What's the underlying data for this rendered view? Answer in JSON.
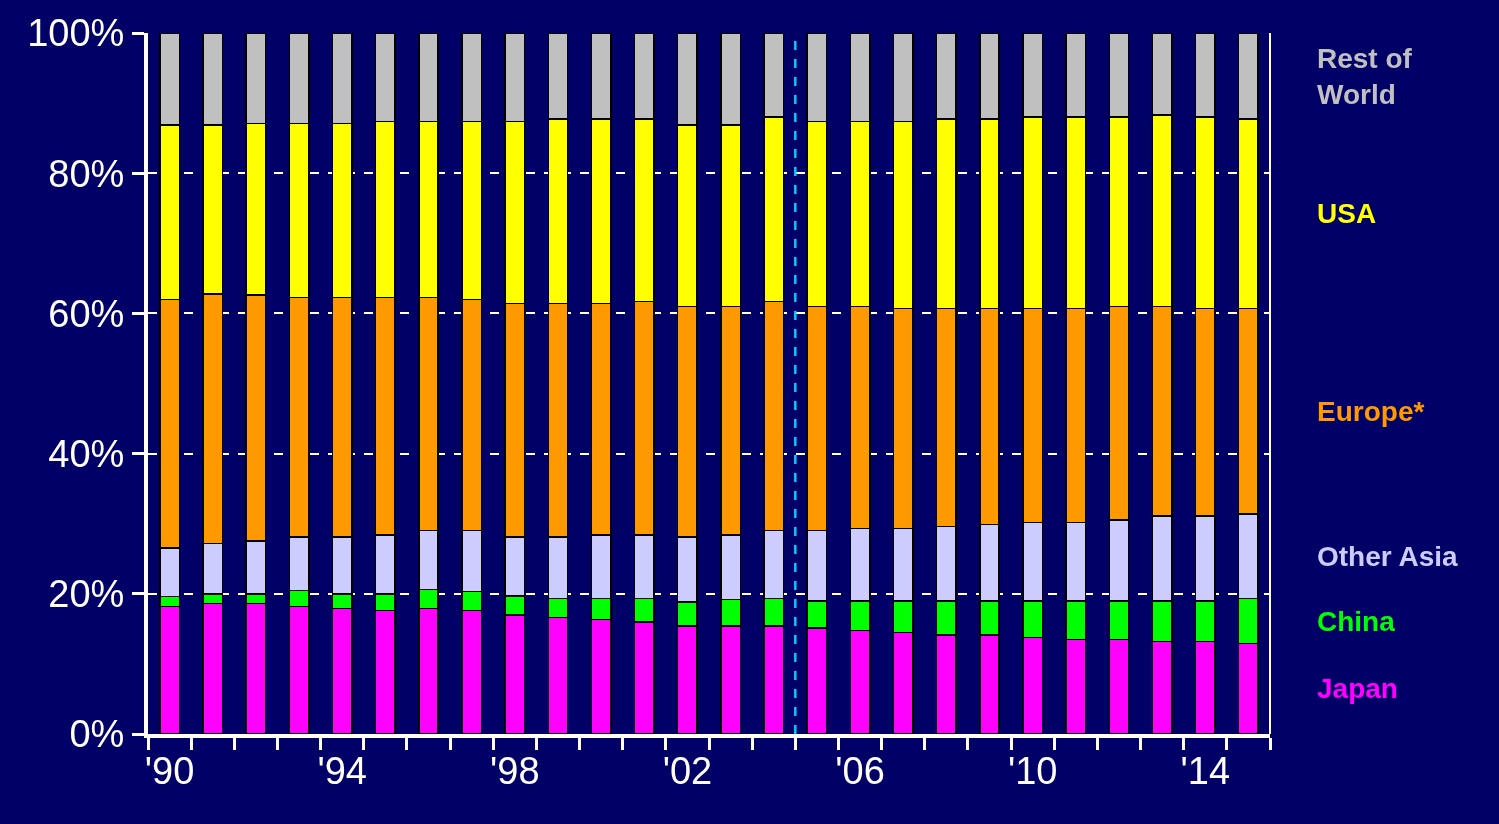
{
  "chart_data": {
    "type": "bar",
    "stacked": true,
    "x": [
      1990,
      1991,
      1992,
      1993,
      1994,
      1995,
      1996,
      1997,
      1998,
      1999,
      2000,
      2001,
      2002,
      2003,
      2004,
      2005,
      2006,
      2007,
      2008,
      2009,
      2010,
      2011,
      2012,
      2013,
      2014,
      2015
    ],
    "series": [
      {
        "name": "Japan",
        "color": "#ff00ff",
        "values": [
          18.2,
          18.6,
          18.6,
          18.2,
          17.9,
          17.6,
          17.9,
          17.6,
          17.0,
          16.6,
          16.3,
          16.0,
          15.4,
          15.4,
          15.4,
          15.1,
          14.8,
          14.5,
          14.1,
          14.1,
          13.8,
          13.5,
          13.5,
          13.2,
          13.2,
          12.9
        ]
      },
      {
        "name": "China",
        "color": "#00ff00",
        "values": [
          1.4,
          1.4,
          1.4,
          2.3,
          2.1,
          2.4,
          2.7,
          2.7,
          2.7,
          2.7,
          3.0,
          3.3,
          3.4,
          3.8,
          3.9,
          3.9,
          4.2,
          4.5,
          4.9,
          4.9,
          5.2,
          5.5,
          5.5,
          5.8,
          5.8,
          6.4
        ]
      },
      {
        "name": "Other Asia",
        "color": "#ccccff",
        "values": [
          6.9,
          7.2,
          7.5,
          7.6,
          8.1,
          8.4,
          8.4,
          8.7,
          8.4,
          8.8,
          9.1,
          9.1,
          9.3,
          9.2,
          9.7,
          10.0,
          10.3,
          10.3,
          10.6,
          10.9,
          11.2,
          11.2,
          11.5,
          12.1,
          12.1,
          12.1
        ]
      },
      {
        "name": "Europe*",
        "color": "#ff9900",
        "values": [
          35.5,
          35.6,
          35.1,
          34.2,
          34.2,
          33.9,
          33.3,
          33.0,
          33.3,
          33.3,
          33.0,
          33.3,
          32.9,
          32.6,
          32.7,
          32.0,
          31.7,
          31.4,
          31.1,
          30.8,
          30.5,
          30.5,
          30.5,
          29.9,
          29.6,
          29.3
        ]
      },
      {
        "name": "USA",
        "color": "#ffff00",
        "values": [
          24.9,
          24.1,
          24.5,
          24.8,
          24.8,
          25.1,
          25.1,
          25.4,
          26.0,
          26.3,
          26.3,
          26.0,
          25.9,
          25.9,
          26.3,
          26.4,
          26.4,
          26.7,
          27.0,
          27.0,
          27.3,
          27.3,
          27.0,
          27.3,
          27.3,
          27.0
        ]
      },
      {
        "name": "Rest of\nWorld",
        "color": "#c0c0c0",
        "values": [
          13.1,
          13.1,
          12.9,
          12.9,
          12.9,
          12.6,
          12.6,
          12.6,
          12.6,
          12.3,
          12.3,
          12.3,
          13.1,
          13.1,
          12.0,
          12.6,
          12.6,
          12.6,
          12.3,
          12.3,
          12.0,
          12.0,
          12.0,
          11.7,
          12.0,
          12.3
        ]
      }
    ],
    "xlim": [
      1989.5,
      2015.5
    ],
    "xticks": [
      {
        "value": 1990,
        "label": "'90"
      },
      {
        "value": 1994,
        "label": "'94"
      },
      {
        "value": 1998,
        "label": "'98"
      },
      {
        "value": 2002,
        "label": "'02"
      },
      {
        "value": 2006,
        "label": "'06"
      },
      {
        "value": 2010,
        "label": "'10"
      },
      {
        "value": 2014,
        "label": "'14"
      },
      {
        "value": 1989.5,
        "label": null
      },
      {
        "value": 1990.5,
        "label": null
      },
      {
        "value": 1991.5,
        "label": null
      },
      {
        "value": 1992.5,
        "label": null
      },
      {
        "value": 1993.5,
        "label": null
      },
      {
        "value": 1994.5,
        "label": null
      },
      {
        "value": 1995.5,
        "label": null
      },
      {
        "value": 1996.5,
        "label": null
      },
      {
        "value": 1997.5,
        "label": null
      },
      {
        "value": 1998.5,
        "label": null
      },
      {
        "value": 1999.5,
        "label": null
      },
      {
        "value": 2000.5,
        "label": null
      },
      {
        "value": 2001.5,
        "label": null
      },
      {
        "value": 2002.5,
        "label": null
      },
      {
        "value": 2003.5,
        "label": null
      },
      {
        "value": 2004.5,
        "label": null
      },
      {
        "value": 2005.5,
        "label": null
      },
      {
        "value": 2006.5,
        "label": null
      },
      {
        "value": 2007.5,
        "label": null
      },
      {
        "value": 2008.5,
        "label": null
      },
      {
        "value": 2009.5,
        "label": null
      },
      {
        "value": 2010.5,
        "label": null
      },
      {
        "value": 2011.5,
        "label": null
      },
      {
        "value": 2012.5,
        "label": null
      },
      {
        "value": 2013.5,
        "label": null
      },
      {
        "value": 2014.5,
        "label": null
      },
      {
        "value": 2015.5,
        "label": null
      }
    ],
    "ylim": [
      0,
      100
    ],
    "yticks": [
      {
        "value": 0,
        "label": "0%"
      },
      {
        "value": 20,
        "label": "20%"
      },
      {
        "value": 40,
        "label": "40%"
      },
      {
        "value": 60,
        "label": "60%"
      },
      {
        "value": 80,
        "label": "80%"
      },
      {
        "value": 100,
        "label": "100%"
      }
    ],
    "grid": "y",
    "ref_lines": [
      {
        "axis": "x",
        "value": 2004.5,
        "label": null,
        "color": "#00ccff",
        "line_style": "dashed"
      }
    ]
  }
}
